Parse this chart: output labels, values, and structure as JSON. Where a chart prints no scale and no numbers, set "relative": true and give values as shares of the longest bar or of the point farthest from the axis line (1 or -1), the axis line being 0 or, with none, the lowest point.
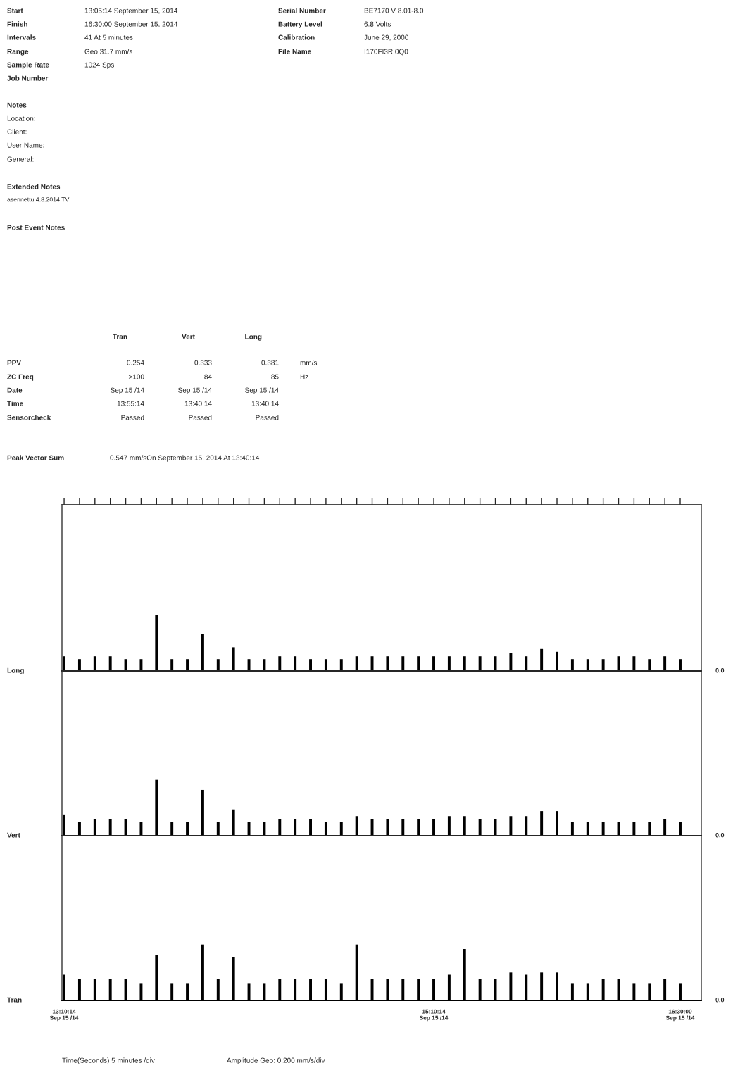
{
  "chart_data": [
    {
      "type": "bar",
      "ylabel": "Long",
      "color": "#000000",
      "relative": true,
      "tick_labels": false,
      "categories": [
        null,
        null,
        null,
        null,
        null,
        null,
        null,
        null,
        null,
        null,
        null,
        null,
        null,
        null,
        null,
        null,
        null,
        null,
        null,
        null,
        null,
        null,
        null,
        null,
        null,
        null,
        null,
        null,
        null,
        null,
        null,
        null,
        null,
        null,
        null,
        null,
        null,
        null,
        null,
        null,
        null
      ],
      "values": [
        0.26,
        0.21,
        0.26,
        0.26,
        0.21,
        0.21,
        1,
        0.21,
        0.21,
        0.66,
        0.21,
        0.42,
        0.21,
        0.21,
        0.26,
        0.26,
        0.21,
        0.21,
        0.21,
        0.26,
        0.26,
        0.26,
        0.26,
        0.26,
        0.26,
        0.26,
        0.26,
        0.26,
        0.26,
        0.32,
        0.26,
        0.39,
        0.34,
        0.21,
        0.21,
        0.21,
        0.26,
        0.26,
        0.21,
        0.26,
        0.21
      ],
      "annotations": [
        "0.0",
        "Start\t13:05:14 September 15, 2014",
        "Finish\t16:30:00 September 15, 2014",
        "Intervals\t41 At 5 minutes",
        "Range\tGeo 31.7 mm/s",
        "Sample Rate\t1024 Sps",
        "Job Number",
        "Serial Number\tBE7170 V 8.01-8.0",
        "Battery Level\t6.8 Volts",
        "Calibration\tJune 29, 2000",
        "File Name\tI170FI3R.0Q0",
        "Notes",
        "Location:",
        "Client:",
        "User Name:",
        "General:",
        "Extended Notes",
        "asennettu 4.8.2014 TV",
        "Post Event Notes",
        "\tTran\tVert\tLong",
        "PPV\t0.254\t0.333\t0.381\tmm/s",
        "ZC Freq\t>100\t84\t85\tHz",
        "Date\tSep 15 /14\tSep 15 /14\tSep 15 /14",
        "Time\t13:55:14\t13:40:14\t13:40:14",
        "Sensorcheck\tPassed\tPassed\tPassed",
        "Peak Vector Sum\t0.547 mm/sOn September 15, 2014 At 13:40:14"
      ]
    },
    {
      "type": "bar",
      "ylabel": "Vert",
      "color": "#000000",
      "relative": true,
      "tick_labels": false,
      "categories": [
        null,
        null,
        null,
        null,
        null,
        null,
        null,
        null,
        null,
        null,
        null,
        null,
        null,
        null,
        null,
        null,
        null,
        null,
        null,
        null,
        null,
        null,
        null,
        null,
        null,
        null,
        null,
        null,
        null,
        null,
        null,
        null,
        null,
        null,
        null,
        null,
        null,
        null,
        null,
        null,
        null
      ],
      "values": [
        0.38,
        0.24,
        0.29,
        0.29,
        0.29,
        0.24,
        1,
        0.24,
        0.24,
        0.82,
        0.24,
        0.47,
        0.24,
        0.24,
        0.29,
        0.29,
        0.29,
        0.24,
        0.24,
        0.35,
        0.29,
        0.29,
        0.29,
        0.29,
        0.29,
        0.35,
        0.35,
        0.29,
        0.29,
        0.35,
        0.35,
        0.44,
        0.44,
        0.24,
        0.24,
        0.24,
        0.24,
        0.24,
        0.24,
        0.29,
        0.24
      ],
      "annotations": [
        "0.0"
      ]
    },
    {
      "type": "bar",
      "ylabel": "Tran",
      "color": "#000000",
      "relative": true,
      "categories": [
        "13:10:14\nSep 15 /14",
        null,
        null,
        null,
        null,
        null,
        null,
        null,
        null,
        null,
        null,
        null,
        null,
        null,
        null,
        null,
        null,
        null,
        null,
        null,
        null,
        null,
        null,
        null,
        "15:10:14\nSep 15 /14",
        null,
        null,
        null,
        null,
        null,
        null,
        null,
        null,
        null,
        null,
        null,
        null,
        null,
        null,
        null,
        "16:30:00\nSep 15 /14"
      ],
      "values": [
        0.46,
        0.38,
        0.38,
        0.38,
        0.38,
        0.31,
        0.81,
        0.31,
        0.31,
        1,
        0.38,
        0.77,
        0.31,
        0.31,
        0.38,
        0.38,
        0.38,
        0.38,
        0.31,
        1,
        0.38,
        0.38,
        0.38,
        0.38,
        0.38,
        0.46,
        0.92,
        0.38,
        0.38,
        0.5,
        0.46,
        0.5,
        0.5,
        0.31,
        0.31,
        0.38,
        0.38,
        0.31,
        0.31,
        0.38,
        0.31
      ],
      "annotations": [
        "0.0",
        "Time(Seconds) 5 minutes /div\tAmplitude Geo: 0.200 mm/s/div"
      ]
    }
  ]
}
